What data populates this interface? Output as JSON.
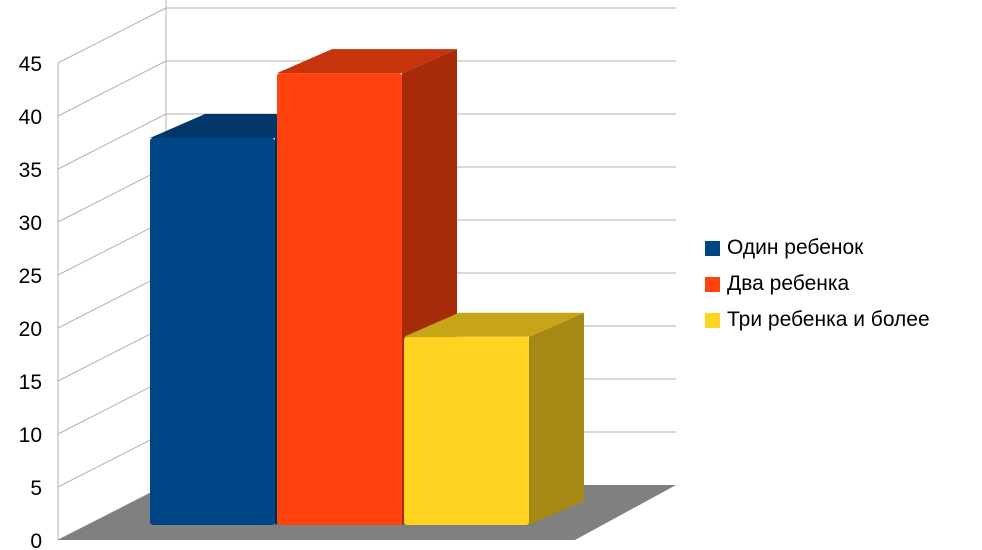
{
  "chart_data": {
    "type": "bar",
    "title": "",
    "xlabel": "",
    "ylabel": "",
    "categories": [
      ""
    ],
    "series": [
      {
        "name": "Один ребенок",
        "values": [
          37
        ],
        "color": "#004586"
      },
      {
        "name": "Два ребенка",
        "values": [
          43.2
        ],
        "color": "#ff420e"
      },
      {
        "name": "Три ребенка и более",
        "values": [
          18
        ],
        "color": "#ffd320"
      }
    ],
    "ylim": [
      0,
      45
    ],
    "yticks": [
      "0",
      "5",
      "10",
      "15",
      "20",
      "25",
      "30",
      "35",
      "40",
      "45"
    ],
    "grid": true,
    "legend_position": "right",
    "style": "3d"
  }
}
